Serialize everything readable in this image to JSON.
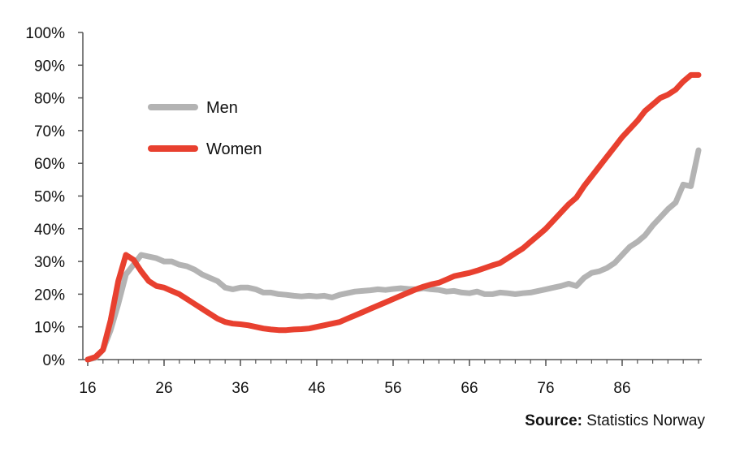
{
  "chart_data": {
    "type": "line",
    "x_ticks": [
      16,
      26,
      36,
      46,
      56,
      66,
      76,
      86
    ],
    "y_ticks": [
      0,
      10,
      20,
      30,
      40,
      50,
      60,
      70,
      80,
      90,
      100
    ],
    "y_tick_labels": [
      "0%",
      "10%",
      "20%",
      "30%",
      "40%",
      "50%",
      "60%",
      "70%",
      "80%",
      "90%",
      "100%"
    ],
    "xlim": [
      16,
      96
    ],
    "ylim": [
      0,
      100
    ],
    "grid": false,
    "legend_position": "upper-left",
    "series": [
      {
        "name": "Men",
        "color": "#b3b3b3",
        "points": [
          [
            16,
            0
          ],
          [
            17,
            0.5
          ],
          [
            18,
            3
          ],
          [
            19,
            9
          ],
          [
            20,
            17
          ],
          [
            21,
            26
          ],
          [
            22,
            29
          ],
          [
            23,
            32
          ],
          [
            24,
            31.5
          ],
          [
            25,
            31
          ],
          [
            26,
            30
          ],
          [
            27,
            30
          ],
          [
            28,
            29
          ],
          [
            29,
            28.5
          ],
          [
            30,
            27.5
          ],
          [
            31,
            26
          ],
          [
            32,
            25
          ],
          [
            33,
            24
          ],
          [
            34,
            22
          ],
          [
            35,
            21.5
          ],
          [
            36,
            22
          ],
          [
            37,
            22
          ],
          [
            38,
            21.5
          ],
          [
            39,
            20.5
          ],
          [
            40,
            20.5
          ],
          [
            41,
            20
          ],
          [
            42,
            19.8
          ],
          [
            43,
            19.5
          ],
          [
            44,
            19.3
          ],
          [
            45,
            19.5
          ],
          [
            46,
            19.3
          ],
          [
            47,
            19.5
          ],
          [
            48,
            19
          ],
          [
            49,
            19.8
          ],
          [
            50,
            20.3
          ],
          [
            51,
            20.8
          ],
          [
            52,
            21
          ],
          [
            53,
            21.2
          ],
          [
            54,
            21.5
          ],
          [
            55,
            21.3
          ],
          [
            56,
            21.6
          ],
          [
            57,
            21.8
          ],
          [
            58,
            21.6
          ],
          [
            59,
            21.5
          ],
          [
            60,
            21.8
          ],
          [
            61,
            21.5
          ],
          [
            62,
            21.3
          ],
          [
            63,
            20.8
          ],
          [
            64,
            21
          ],
          [
            65,
            20.5
          ],
          [
            66,
            20.3
          ],
          [
            67,
            20.8
          ],
          [
            68,
            20
          ],
          [
            69,
            20
          ],
          [
            70,
            20.5
          ],
          [
            71,
            20.3
          ],
          [
            72,
            20
          ],
          [
            73,
            20.3
          ],
          [
            74,
            20.5
          ],
          [
            75,
            21
          ],
          [
            76,
            21.5
          ],
          [
            77,
            22
          ],
          [
            78,
            22.5
          ],
          [
            79,
            23.2
          ],
          [
            80,
            22.5
          ],
          [
            81,
            25
          ],
          [
            82,
            26.5
          ],
          [
            83,
            27
          ],
          [
            84,
            28
          ],
          [
            85,
            29.5
          ],
          [
            86,
            32
          ],
          [
            87,
            34.5
          ],
          [
            88,
            36
          ],
          [
            89,
            38
          ],
          [
            90,
            41
          ],
          [
            91,
            43.5
          ],
          [
            92,
            46
          ],
          [
            93,
            48
          ],
          [
            94,
            53.5
          ],
          [
            95,
            53
          ],
          [
            96,
            64
          ]
        ]
      },
      {
        "name": "Women",
        "color": "#e8402f",
        "points": [
          [
            16,
            0
          ],
          [
            17,
            0.8
          ],
          [
            18,
            3
          ],
          [
            19,
            12
          ],
          [
            20,
            24
          ],
          [
            21,
            32
          ],
          [
            22,
            30.5
          ],
          [
            23,
            27
          ],
          [
            24,
            24
          ],
          [
            25,
            22.5
          ],
          [
            26,
            22
          ],
          [
            27,
            21
          ],
          [
            28,
            20
          ],
          [
            29,
            18.5
          ],
          [
            30,
            17
          ],
          [
            31,
            15.5
          ],
          [
            32,
            14
          ],
          [
            33,
            12.5
          ],
          [
            34,
            11.5
          ],
          [
            35,
            11
          ],
          [
            36,
            10.8
          ],
          [
            37,
            10.5
          ],
          [
            38,
            10
          ],
          [
            39,
            9.5
          ],
          [
            40,
            9.2
          ],
          [
            41,
            9
          ],
          [
            42,
            9
          ],
          [
            43,
            9.2
          ],
          [
            44,
            9.3
          ],
          [
            45,
            9.5
          ],
          [
            46,
            10
          ],
          [
            47,
            10.5
          ],
          [
            48,
            11
          ],
          [
            49,
            11.5
          ],
          [
            50,
            12.5
          ],
          [
            51,
            13.5
          ],
          [
            52,
            14.5
          ],
          [
            53,
            15.5
          ],
          [
            54,
            16.5
          ],
          [
            55,
            17.5
          ],
          [
            56,
            18.5
          ],
          [
            57,
            19.5
          ],
          [
            58,
            20.5
          ],
          [
            59,
            21.5
          ],
          [
            60,
            22.3
          ],
          [
            61,
            23
          ],
          [
            62,
            23.5
          ],
          [
            63,
            24.5
          ],
          [
            64,
            25.5
          ],
          [
            65,
            26
          ],
          [
            66,
            26.5
          ],
          [
            67,
            27.2
          ],
          [
            68,
            28
          ],
          [
            69,
            28.8
          ],
          [
            70,
            29.5
          ],
          [
            71,
            31
          ],
          [
            72,
            32.5
          ],
          [
            73,
            34
          ],
          [
            74,
            36
          ],
          [
            75,
            38
          ],
          [
            76,
            40
          ],
          [
            77,
            42.5
          ],
          [
            78,
            45
          ],
          [
            79,
            47.5
          ],
          [
            80,
            49.5
          ],
          [
            81,
            53
          ],
          [
            82,
            56
          ],
          [
            83,
            59
          ],
          [
            84,
            62
          ],
          [
            85,
            65
          ],
          [
            86,
            68
          ],
          [
            87,
            70.5
          ],
          [
            88,
            73
          ],
          [
            89,
            76
          ],
          [
            90,
            78
          ],
          [
            91,
            80
          ],
          [
            92,
            81
          ],
          [
            93,
            82.5
          ],
          [
            94,
            85
          ],
          [
            95,
            87
          ],
          [
            96,
            87
          ]
        ]
      }
    ]
  },
  "source": {
    "prefix": "Source:",
    "text": "Statistics Norway"
  }
}
